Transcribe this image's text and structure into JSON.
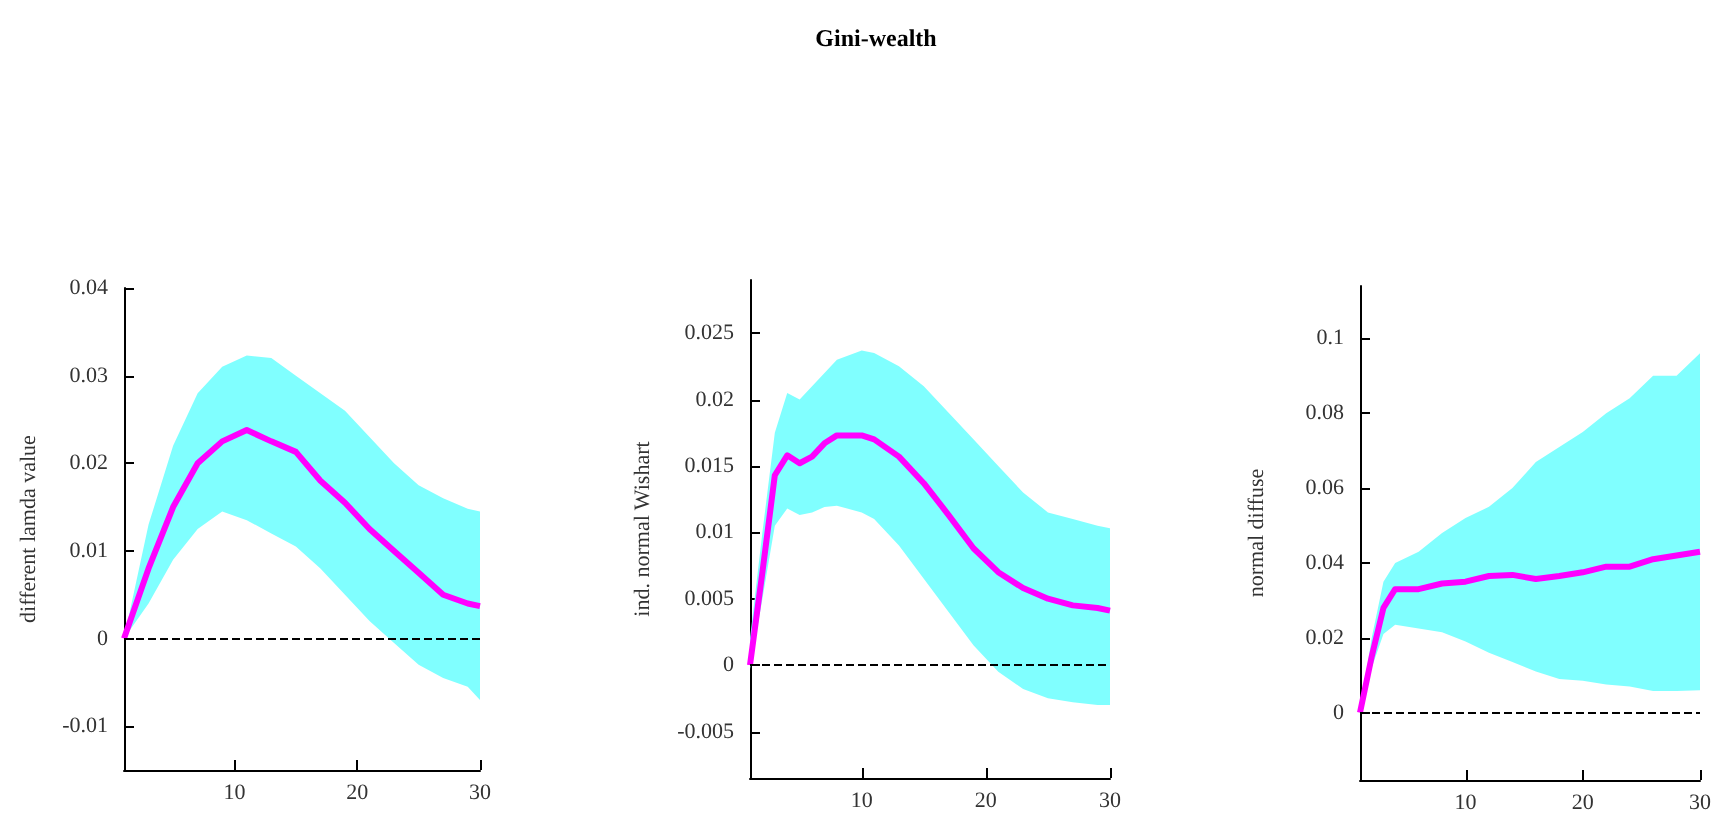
{
  "chart_data": [
    {
      "type": "line",
      "ylabel": "different lamda value",
      "marker": "none",
      "xlim": [
        1,
        30
      ],
      "xticks": [
        10,
        20,
        30
      ],
      "ylim": [
        -0.015,
        0.04
      ],
      "yticks": [
        -0.01,
        0,
        0.01,
        0.02,
        0.03,
        0.04
      ],
      "ref_lines": [
        {
          "axis": "y",
          "value": 0,
          "color": "#000000",
          "line_style": "dashed"
        }
      ],
      "series": [
        {
          "color": "#ff00ff",
          "x": [
            1,
            3,
            5,
            7,
            9,
            11,
            13,
            15,
            17,
            19,
            21,
            23,
            25,
            27,
            29,
            30
          ],
          "values": [
            0,
            0.008,
            0.015,
            0.02,
            0.0225,
            0.0238,
            0.0225,
            0.0213,
            0.018,
            0.0155,
            0.0125,
            0.01,
            0.0075,
            0.005,
            0.004,
            0.0037
          ],
          "upper": [
            0,
            0.013,
            0.022,
            0.028,
            0.031,
            0.0323,
            0.032,
            0.03,
            0.028,
            0.026,
            0.023,
            0.02,
            0.0175,
            0.016,
            0.0148,
            0.0145
          ],
          "lower": [
            0,
            0.004,
            0.009,
            0.0125,
            0.0145,
            0.0135,
            0.012,
            0.0105,
            0.008,
            0.005,
            0.002,
            -0.0005,
            -0.003,
            -0.0045,
            -0.0055,
            -0.007
          ]
        }
      ]
    },
    {
      "type": "line",
      "title": "Gini-wealth",
      "ylabel": "ind. normal Wishart",
      "marker": "none",
      "xlim": [
        1,
        30
      ],
      "xticks": [
        10,
        20,
        30
      ],
      "ylim": [
        -0.0085,
        0.029
      ],
      "yticks": [
        -0.005,
        0,
        0.005,
        0.01,
        0.015,
        0.02,
        0.025
      ],
      "ref_lines": [
        {
          "axis": "y",
          "value": 0,
          "color": "#000000",
          "line_style": "dashed"
        }
      ],
      "series": [
        {
          "color": "#ff00ff",
          "x": [
            1,
            2,
            3,
            4,
            5,
            6,
            7,
            8,
            10,
            11,
            13,
            15,
            17,
            19,
            21,
            23,
            25,
            27,
            29,
            30
          ],
          "values": [
            0,
            0.007,
            0.0143,
            0.0158,
            0.0152,
            0.0157,
            0.0167,
            0.0173,
            0.0173,
            0.017,
            0.0157,
            0.0137,
            0.0113,
            0.0088,
            0.007,
            0.0058,
            0.005,
            0.0045,
            0.0043,
            0.0041
          ],
          "upper": [
            0.002,
            0.01,
            0.0175,
            0.0205,
            0.02,
            0.021,
            0.022,
            0.023,
            0.0237,
            0.0235,
            0.0225,
            0.021,
            0.019,
            0.017,
            0.015,
            0.013,
            0.0115,
            0.011,
            0.0105,
            0.0103
          ],
          "lower": [
            -0.0003,
            0.005,
            0.0105,
            0.0118,
            0.0113,
            0.0115,
            0.0119,
            0.012,
            0.0115,
            0.011,
            0.009,
            0.0065,
            0.004,
            0.0015,
            -0.0005,
            -0.0018,
            -0.0025,
            -0.0028,
            -0.003,
            -0.003
          ]
        }
      ]
    },
    {
      "type": "line",
      "ylabel": "normal diffuse",
      "marker": "none",
      "xlim": [
        1,
        30
      ],
      "xticks": [
        10,
        20,
        30
      ],
      "ylim": [
        -0.018,
        0.114
      ],
      "yticks": [
        0,
        0.02,
        0.04,
        0.06,
        0.08,
        0.1
      ],
      "ref_lines": [
        {
          "axis": "y",
          "value": 0,
          "color": "#000000",
          "line_style": "dashed"
        }
      ],
      "series": [
        {
          "color": "#ff00ff",
          "x": [
            1,
            2,
            3,
            4,
            6,
            8,
            10,
            12,
            14,
            16,
            18,
            20,
            22,
            24,
            26,
            28,
            30
          ],
          "values": [
            0,
            0.015,
            0.028,
            0.033,
            0.033,
            0.0345,
            0.035,
            0.0365,
            0.0368,
            0.0357,
            0.0365,
            0.0375,
            0.039,
            0.039,
            0.041,
            0.042,
            0.043
          ],
          "upper": [
            0,
            0.02,
            0.035,
            0.04,
            0.043,
            0.048,
            0.052,
            0.055,
            0.06,
            0.067,
            0.071,
            0.075,
            0.08,
            0.084,
            0.09,
            0.09,
            0.096
          ],
          "lower": [
            0,
            0.012,
            0.021,
            0.0235,
            0.0225,
            0.0215,
            0.019,
            0.016,
            0.0135,
            0.011,
            0.009,
            0.0085,
            0.0075,
            0.007,
            0.0058,
            0.0058,
            0.006
          ]
        }
      ]
    }
  ]
}
